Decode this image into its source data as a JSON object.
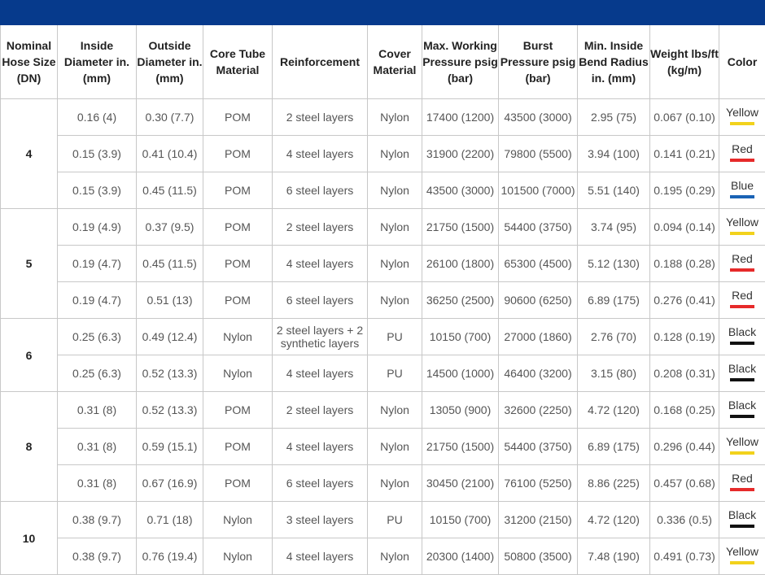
{
  "headers": [
    "Nominal Hose Size (DN)",
    "Inside Diameter in. (mm)",
    "Outside Diameter in. (mm)",
    "Core Tube Material",
    "Reinforcement",
    "Cover Material",
    "Max. Working Pressure psig (bar)",
    "Burst Pressure psig (bar)",
    "Min. Inside Bend Radius in. (mm)",
    "Weight lbs/ft (kg/m)",
    "Color"
  ],
  "groups": [
    {
      "dn": "4",
      "rows": [
        {
          "id": "0.16 (4)",
          "od": "0.30 (7.7)",
          "core": "POM",
          "reinf": "2 steel layers",
          "cover": "Nylon",
          "mwp": "17400 (1200)",
          "burst": "43500 (3000)",
          "bend": "2.95 (75)",
          "weight": "0.067 (0.10)",
          "color": "Yellow",
          "hex": "#f2d21c"
        },
        {
          "id": "0.15 (3.9)",
          "od": "0.41 (10.4)",
          "core": "POM",
          "reinf": "4 steel layers",
          "cover": "Nylon",
          "mwp": "31900 (2200)",
          "burst": "79800 (5500)",
          "bend": "3.94 (100)",
          "weight": "0.141 (0.21)",
          "color": "Red",
          "hex": "#e62a2a"
        },
        {
          "id": "0.15 (3.9)",
          "od": "0.45 (11.5)",
          "core": "POM",
          "reinf": "6 steel layers",
          "cover": "Nylon",
          "mwp": "43500 (3000)",
          "burst": "101500 (7000)",
          "bend": "5.51 (140)",
          "weight": "0.195 (0.29)",
          "color": "Blue",
          "hex": "#1a63b5"
        }
      ]
    },
    {
      "dn": "5",
      "rows": [
        {
          "id": "0.19 (4.9)",
          "od": "0.37 (9.5)",
          "core": "POM",
          "reinf": "2 steel layers",
          "cover": "Nylon",
          "mwp": "21750 (1500)",
          "burst": "54400 (3750)",
          "bend": "3.74 (95)",
          "weight": "0.094 (0.14)",
          "color": "Yellow",
          "hex": "#f2d21c"
        },
        {
          "id": "0.19 (4.7)",
          "od": "0.45 (11.5)",
          "core": "POM",
          "reinf": "4 steel layers",
          "cover": "Nylon",
          "mwp": "26100 (1800)",
          "burst": "65300 (4500)",
          "bend": "5.12 (130)",
          "weight": "0.188 (0.28)",
          "color": "Red",
          "hex": "#e62a2a"
        },
        {
          "id": "0.19 (4.7)",
          "od": "0.51 (13)",
          "core": "POM",
          "reinf": "6 steel layers",
          "cover": "Nylon",
          "mwp": "36250 (2500)",
          "burst": "90600 (6250)",
          "bend": "6.89 (175)",
          "weight": "0.276 (0.41)",
          "color": "Red",
          "hex": "#e62a2a"
        }
      ]
    },
    {
      "dn": "6",
      "rows": [
        {
          "id": "0.25 (6.3)",
          "od": "0.49 (12.4)",
          "core": "Nylon",
          "reinf": "2 steel layers + 2 synthetic layers",
          "cover": "PU",
          "mwp": "10150 (700)",
          "burst": "27000 (1860)",
          "bend": "2.76 (70)",
          "weight": "0.128 (0.19)",
          "color": "Black",
          "hex": "#111111"
        },
        {
          "id": "0.25 (6.3)",
          "od": "0.52 (13.3)",
          "core": "Nylon",
          "reinf": "4 steel layers",
          "cover": "PU",
          "mwp": "14500 (1000)",
          "burst": "46400 (3200)",
          "bend": "3.15 (80)",
          "weight": "0.208 (0.31)",
          "color": "Black",
          "hex": "#111111"
        }
      ]
    },
    {
      "dn": "8",
      "rows": [
        {
          "id": "0.31 (8)",
          "od": "0.52 (13.3)",
          "core": "POM",
          "reinf": "2 steel layers",
          "cover": "Nylon",
          "mwp": "13050 (900)",
          "burst": "32600 (2250)",
          "bend": "4.72 (120)",
          "weight": "0.168 (0.25)",
          "color": "Black",
          "hex": "#111111"
        },
        {
          "id": "0.31 (8)",
          "od": "0.59 (15.1)",
          "core": "POM",
          "reinf": "4 steel layers",
          "cover": "Nylon",
          "mwp": "21750 (1500)",
          "burst": "54400 (3750)",
          "bend": "6.89 (175)",
          "weight": "0.296 (0.44)",
          "color": "Yellow",
          "hex": "#f2d21c"
        },
        {
          "id": "0.31 (8)",
          "od": "0.67 (16.9)",
          "core": "POM",
          "reinf": "6 steel layers",
          "cover": "Nylon",
          "mwp": "30450 (2100)",
          "burst": "76100 (5250)",
          "bend": "8.86 (225)",
          "weight": "0.457 (0.68)",
          "color": "Red",
          "hex": "#e62a2a"
        }
      ]
    },
    {
      "dn": "10",
      "rows": [
        {
          "id": "0.38 (9.7)",
          "od": "0.71 (18)",
          "core": "Nylon",
          "reinf": "3 steel layers",
          "cover": "PU",
          "mwp": "10150 (700)",
          "burst": "31200 (2150)",
          "bend": "4.72 (120)",
          "weight": "0.336 (0.5)",
          "color": "Black",
          "hex": "#111111"
        },
        {
          "id": "0.38 (9.7)",
          "od": "0.76 (19.4)",
          "core": "Nylon",
          "reinf": "4 steel layers",
          "cover": "Nylon",
          "mwp": "20300 (1400)",
          "burst": "50800 (3500)",
          "bend": "7.48 (190)",
          "weight": "0.491 (0.73)",
          "color": "Yellow",
          "hex": "#f2d21c"
        }
      ]
    }
  ],
  "theme": {
    "topbar": "#063a8c",
    "border": "#c8c8c8"
  }
}
